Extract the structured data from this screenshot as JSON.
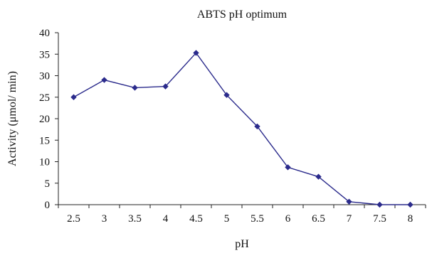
{
  "chart_data": {
    "type": "line",
    "title": "ABTS pH optimum",
    "xlabel": "pH",
    "ylabel": "Activity (μmol/ min)",
    "categories": [
      "2.5",
      "3",
      "3.5",
      "4",
      "4.5",
      "5",
      "5.5",
      "6",
      "6.5",
      "7",
      "7.5",
      "8"
    ],
    "series": [
      {
        "values": [
          25,
          29,
          27.2,
          27.5,
          35.3,
          25.5,
          18.2,
          8.7,
          6.5,
          0.7,
          0,
          0
        ]
      }
    ],
    "ylim": [
      0,
      40
    ],
    "yticks": [
      "0",
      "5",
      "10",
      "15",
      "20",
      "25",
      "30",
      "35",
      "40"
    ],
    "grid": false,
    "legend": "none",
    "colors": {
      "series": "#2b2b8c",
      "axis": "#222222"
    }
  }
}
